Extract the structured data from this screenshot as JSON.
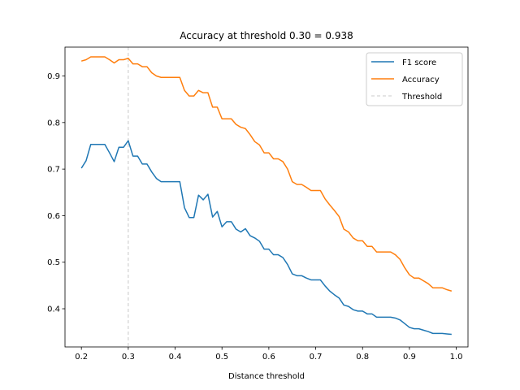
{
  "chart_data": {
    "type": "line",
    "title": "Accuracy at threshold 0.30 = 0.938",
    "xlabel": "Distance threshold",
    "ylabel": "",
    "xlim": [
      0.165,
      1.025
    ],
    "ylim": [
      0.318,
      0.962
    ],
    "xticks": [
      0.2,
      0.3,
      0.4,
      0.5,
      0.6,
      0.7,
      0.8,
      0.9,
      1.0
    ],
    "xtick_labels": [
      "0.2",
      "0.3",
      "0.4",
      "0.5",
      "0.6",
      "0.7",
      "0.8",
      "0.9",
      "1.0"
    ],
    "yticks": [
      0.4,
      0.5,
      0.6,
      0.7,
      0.8,
      0.9
    ],
    "ytick_labels": [
      "0.4",
      "0.5",
      "0.6",
      "0.7",
      "0.8",
      "0.9"
    ],
    "grid": false,
    "legend_position": "top-right",
    "threshold": 0.3,
    "x": [
      0.2,
      0.21,
      0.22,
      0.23,
      0.24,
      0.25,
      0.26,
      0.27,
      0.28,
      0.29,
      0.3,
      0.31,
      0.32,
      0.33,
      0.34,
      0.35,
      0.36,
      0.37,
      0.38,
      0.39,
      0.4,
      0.41,
      0.42,
      0.43,
      0.44,
      0.45,
      0.46,
      0.47,
      0.48,
      0.49,
      0.5,
      0.51,
      0.52,
      0.53,
      0.54,
      0.55,
      0.56,
      0.57,
      0.58,
      0.59,
      0.6,
      0.61,
      0.62,
      0.63,
      0.64,
      0.65,
      0.66,
      0.67,
      0.68,
      0.69,
      0.7,
      0.71,
      0.72,
      0.73,
      0.74,
      0.75,
      0.76,
      0.77,
      0.78,
      0.79,
      0.8,
      0.81,
      0.82,
      0.83,
      0.84,
      0.85,
      0.86,
      0.87,
      0.88,
      0.89,
      0.9,
      0.91,
      0.92,
      0.93,
      0.94,
      0.95,
      0.96,
      0.97,
      0.98,
      0.99
    ],
    "series": [
      {
        "name": "F1 score",
        "color": "#1f77b4",
        "style": "solid",
        "values": [
          0.702,
          0.718,
          0.753,
          0.753,
          0.753,
          0.753,
          0.735,
          0.716,
          0.747,
          0.747,
          0.761,
          0.728,
          0.728,
          0.711,
          0.711,
          0.694,
          0.68,
          0.673,
          0.673,
          0.673,
          0.673,
          0.673,
          0.617,
          0.596,
          0.596,
          0.644,
          0.634,
          0.646,
          0.597,
          0.609,
          0.576,
          0.587,
          0.587,
          0.571,
          0.565,
          0.572,
          0.557,
          0.552,
          0.545,
          0.528,
          0.528,
          0.516,
          0.516,
          0.51,
          0.495,
          0.475,
          0.471,
          0.471,
          0.466,
          0.462,
          0.462,
          0.462,
          0.449,
          0.438,
          0.43,
          0.423,
          0.408,
          0.405,
          0.398,
          0.395,
          0.395,
          0.389,
          0.389,
          0.382,
          0.382,
          0.382,
          0.382,
          0.38,
          0.376,
          0.368,
          0.36,
          0.357,
          0.357,
          0.354,
          0.351,
          0.347,
          0.347,
          0.347,
          0.346,
          0.345
        ]
      },
      {
        "name": "Accuracy",
        "color": "#ff7f0e",
        "style": "solid",
        "values": [
          0.932,
          0.935,
          0.941,
          0.941,
          0.941,
          0.941,
          0.935,
          0.928,
          0.935,
          0.935,
          0.938,
          0.926,
          0.926,
          0.92,
          0.92,
          0.907,
          0.9,
          0.897,
          0.897,
          0.897,
          0.897,
          0.897,
          0.869,
          0.857,
          0.857,
          0.869,
          0.864,
          0.864,
          0.833,
          0.833,
          0.808,
          0.808,
          0.808,
          0.796,
          0.79,
          0.787,
          0.774,
          0.759,
          0.752,
          0.735,
          0.735,
          0.722,
          0.722,
          0.716,
          0.7,
          0.673,
          0.667,
          0.667,
          0.661,
          0.654,
          0.654,
          0.654,
          0.636,
          0.623,
          0.611,
          0.598,
          0.571,
          0.565,
          0.552,
          0.546,
          0.546,
          0.534,
          0.534,
          0.522,
          0.522,
          0.522,
          0.522,
          0.516,
          0.506,
          0.488,
          0.473,
          0.466,
          0.466,
          0.46,
          0.454,
          0.445,
          0.445,
          0.445,
          0.441,
          0.438
        ]
      }
    ],
    "legend": [
      {
        "label": "F1 score",
        "color": "#1f77b4",
        "style": "solid"
      },
      {
        "label": "Accuracy",
        "color": "#ff7f0e",
        "style": "solid"
      },
      {
        "label": "Threshold",
        "color": "#c8c8c8",
        "style": "dashed"
      }
    ]
  }
}
